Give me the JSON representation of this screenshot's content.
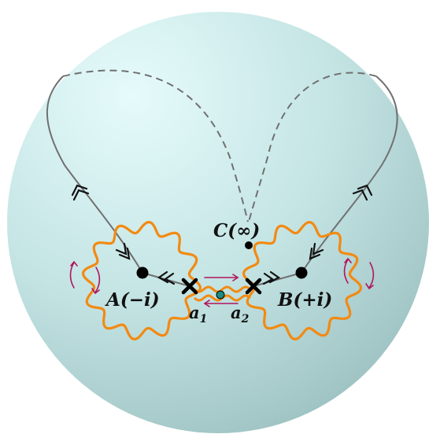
{
  "labels": {
    "point_a": "A(−i)",
    "point_b": "B(+i)",
    "point_c": "C(∞)",
    "a1": "a",
    "a1_sub": "1",
    "a2": "a",
    "a2_sub": "2"
  },
  "colors": {
    "sphere_light": "#e6fbfb",
    "sphere_dark": "#a6c9c9",
    "orange_contour": "#f28a12",
    "path_gray": "#707070",
    "arrow_magenta": "#b0145c",
    "center_dot": "#1f8a7e",
    "marker_black": "#000000"
  },
  "icons": [
    "cross-marker",
    "filled-dot",
    "open-chevron-arrow",
    "rotation-arrow"
  ]
}
